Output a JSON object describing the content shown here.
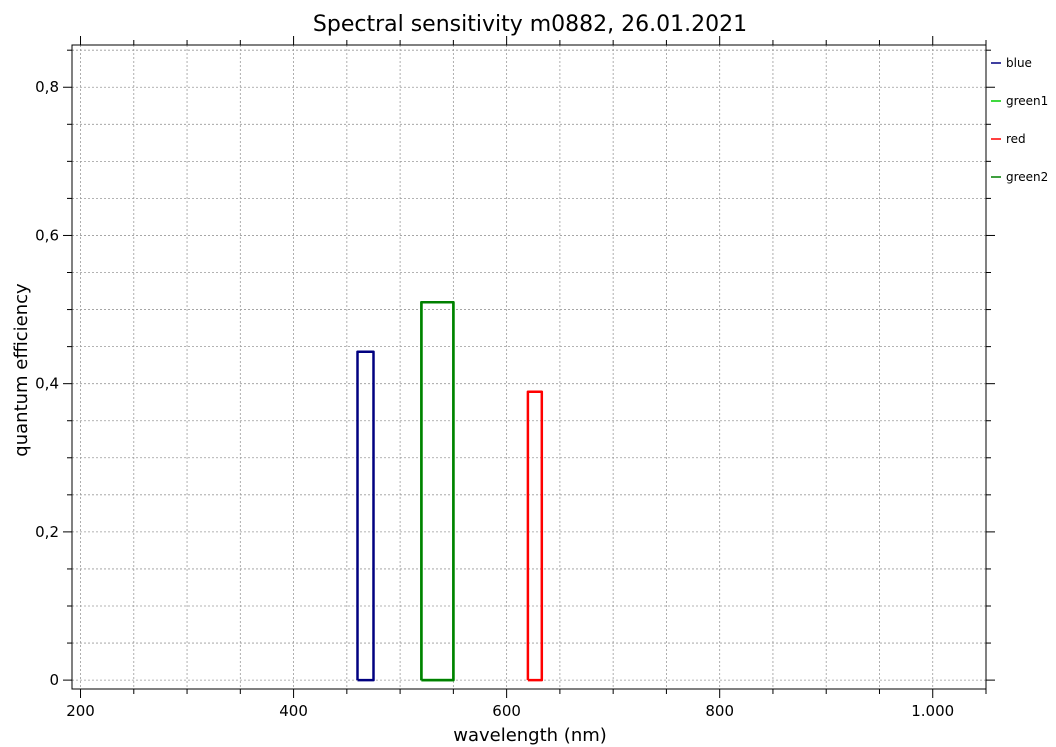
{
  "chart_data": {
    "type": "line",
    "title": "Spectral sensitivity m0882, 26.01.2021",
    "xlabel": "wavelength (nm)",
    "ylabel": "quantum efficiency",
    "xlim": [
      192,
      1050
    ],
    "ylim": [
      -0.012,
      0.857
    ],
    "x_ticks": [
      200,
      400,
      600,
      800,
      1000
    ],
    "x_tick_labels": [
      "200",
      "400",
      "600",
      "800",
      "1.000"
    ],
    "y_ticks": [
      0,
      0.2,
      0.4,
      0.6,
      0.8
    ],
    "y_tick_labels": [
      "0",
      "0,2",
      "0,4",
      "0,6",
      "0,8"
    ],
    "grid": true,
    "legend_position": "right",
    "series": [
      {
        "name": "blue",
        "color": "#000080",
        "x": [
          460,
          460,
          475,
          475,
          460
        ],
        "y": [
          0,
          0.443,
          0.443,
          0,
          0
        ]
      },
      {
        "name": "green1",
        "color": "#00cc00",
        "x": [
          520,
          520,
          550,
          550,
          520
        ],
        "y": [
          0,
          0.51,
          0.51,
          0,
          0
        ]
      },
      {
        "name": "red",
        "color": "#ff0000",
        "x": [
          620,
          620,
          633,
          633,
          620
        ],
        "y": [
          0,
          0.389,
          0.389,
          0,
          0
        ]
      },
      {
        "name": "green2",
        "color": "#008000",
        "x": [
          520,
          520,
          550,
          550,
          520
        ],
        "y": [
          0,
          0.51,
          0.51,
          0,
          0
        ]
      }
    ]
  }
}
